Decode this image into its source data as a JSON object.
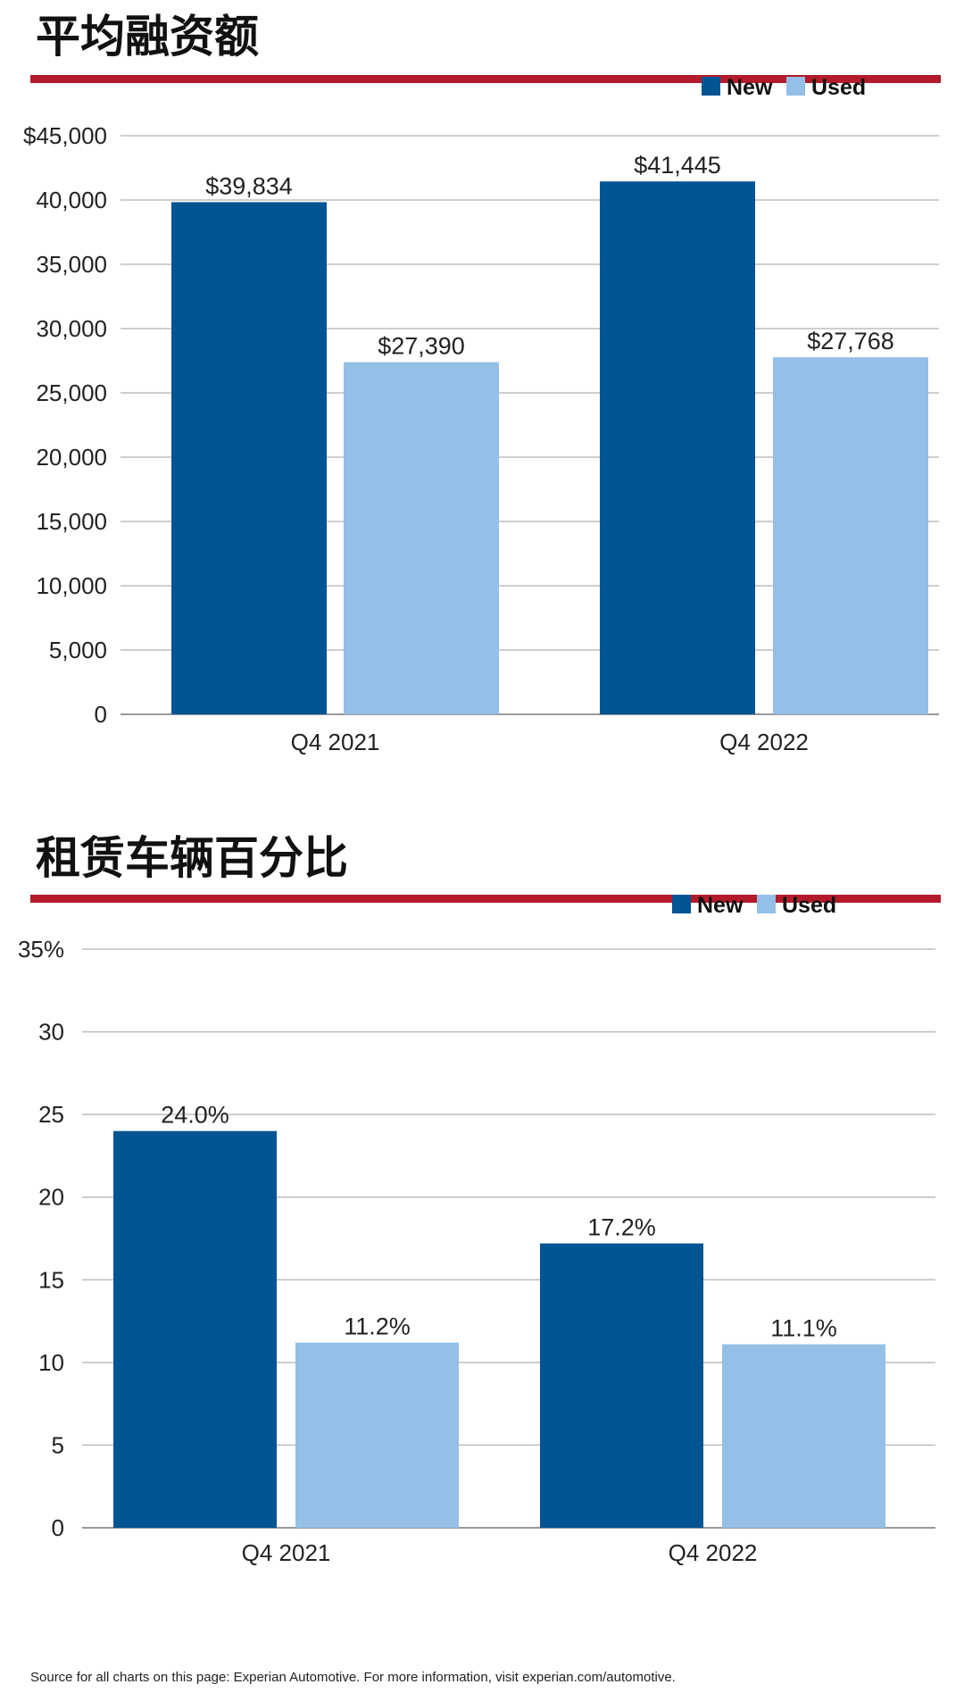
{
  "colors": {
    "new": "#035493",
    "used": "#94bfe6",
    "rule": "#b31b2b",
    "grid": "#bdbdbd",
    "baseline": "#9a9a9a"
  },
  "source_note": "Source for all charts on this page: Experian Automotive. For more information, visit experian.com/automotive.",
  "chart_data": [
    {
      "type": "bar",
      "title": "平均融资额",
      "categories": [
        "Q4 2021",
        "Q4 2022"
      ],
      "series": [
        {
          "name": "New",
          "values": [
            39834,
            41445
          ],
          "labels": [
            "$39,834",
            "$41,445"
          ]
        },
        {
          "name": "Used",
          "values": [
            27390,
            27768
          ],
          "labels": [
            "$27,390",
            "$27,768"
          ]
        }
      ],
      "ylim": [
        0,
        45000
      ],
      "yticks": [
        0,
        5000,
        10000,
        15000,
        20000,
        25000,
        30000,
        35000,
        40000,
        45000
      ],
      "ytick_labels": [
        "0",
        "5,000",
        "10,000",
        "15,000",
        "20,000",
        "25,000",
        "30,000",
        "35,000",
        "40,000",
        "$45,000"
      ],
      "grid": true,
      "legend": "top-right"
    },
    {
      "type": "bar",
      "title": "租赁车辆百分比",
      "categories": [
        "Q4 2021",
        "Q4 2022"
      ],
      "series": [
        {
          "name": "New",
          "values": [
            24.0,
            17.2
          ],
          "labels": [
            "24.0%",
            "17.2%"
          ]
        },
        {
          "name": "Used",
          "values": [
            11.2,
            11.1
          ],
          "labels": [
            "11.2%",
            "11.1%"
          ]
        }
      ],
      "ylim": [
        0,
        35
      ],
      "yticks": [
        0,
        5,
        10,
        15,
        20,
        25,
        30,
        35
      ],
      "ytick_labels": [
        "0",
        "5",
        "10",
        "15",
        "20",
        "25",
        "30",
        "35%"
      ],
      "grid": true,
      "legend": "top-right"
    }
  ]
}
